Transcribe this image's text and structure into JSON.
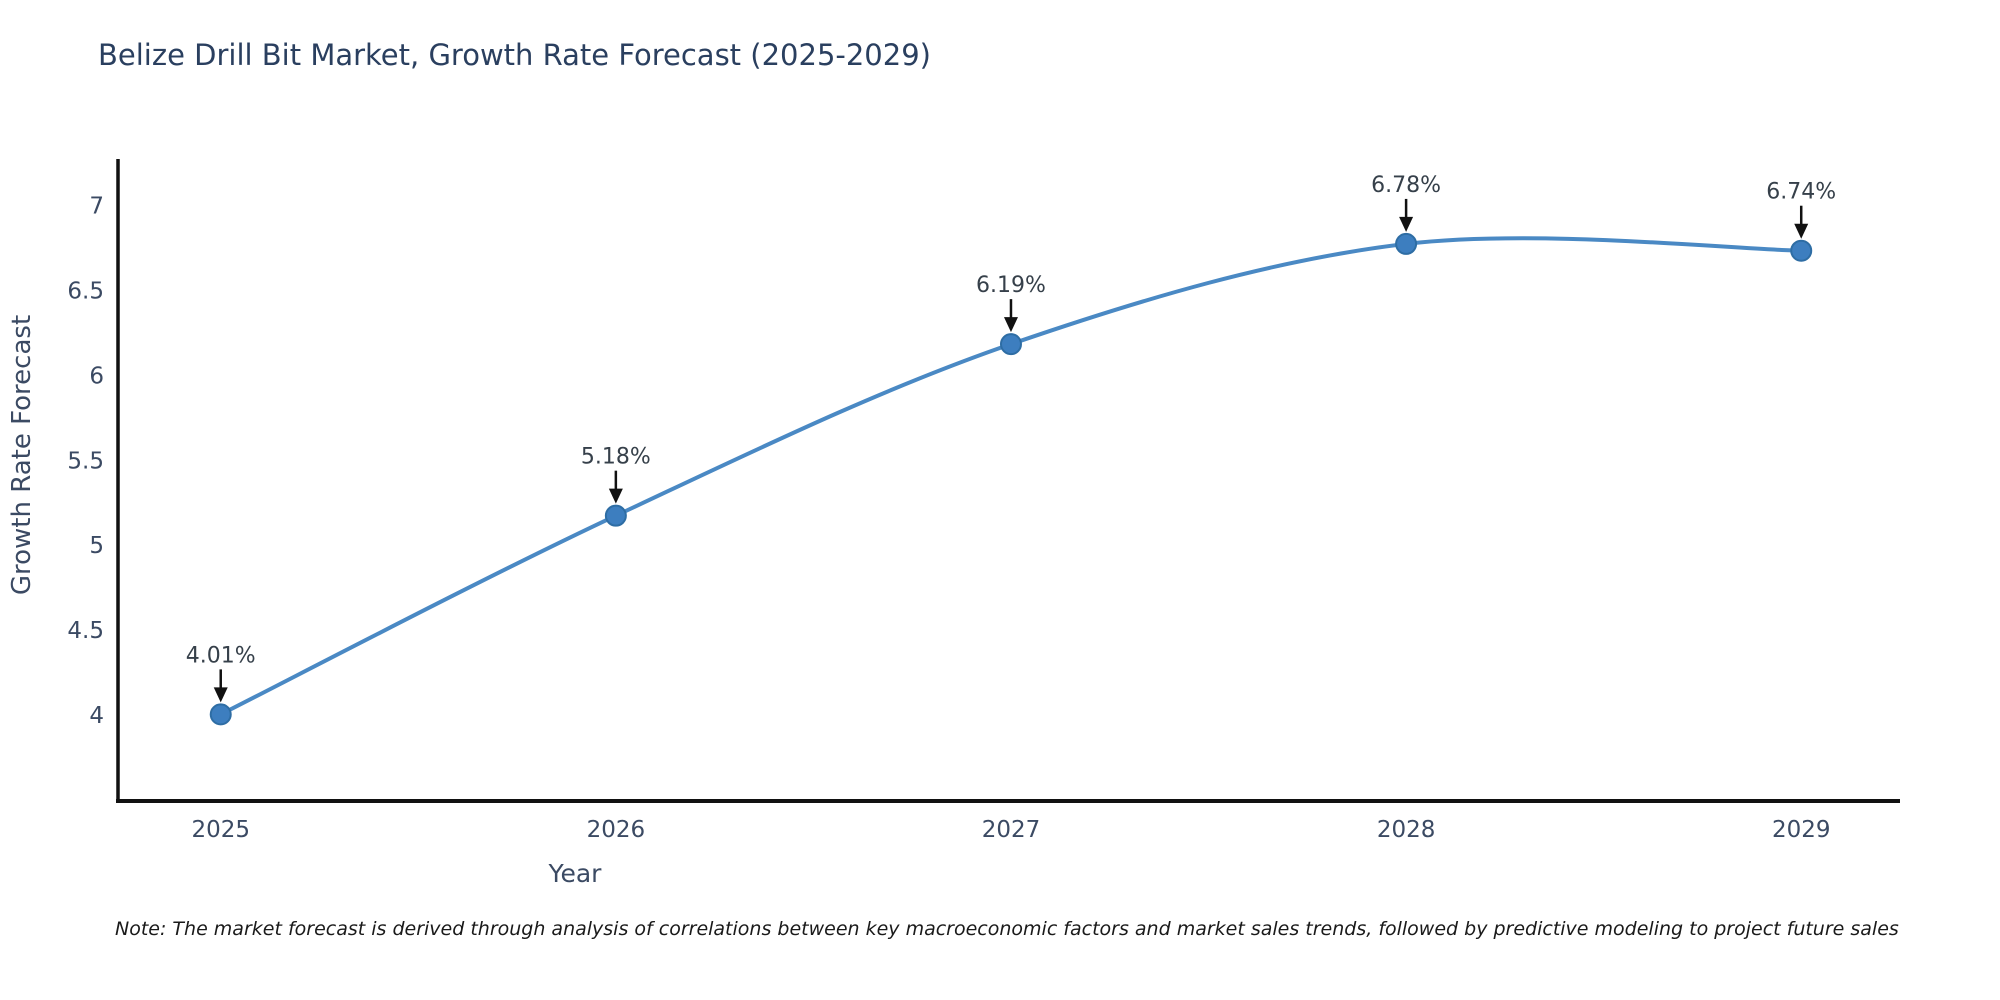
{
  "title": {
    "text": "Belize Drill Bit Market, Growth Rate Forecast (2025-2029)",
    "color": "#2a3f5f"
  },
  "note": {
    "text": "Note: The market forecast is derived through analysis of correlations between key macroeconomic factors and market sales trends, followed by predictive modeling to project future sales"
  },
  "chart_data": {
    "type": "line",
    "title": "Belize Drill Bit Market, Growth Rate Forecast (2025-2029)",
    "xlabel": "Year",
    "ylabel": "Growth Rate Forecast",
    "x": [
      2025,
      2026,
      2027,
      2028,
      2029
    ],
    "y": [
      4.01,
      5.18,
      6.19,
      6.78,
      6.74
    ],
    "point_labels": [
      "4.01%",
      "5.18%",
      "6.19%",
      "6.78%",
      "6.74%"
    ],
    "xlim": [
      2024.74,
      2029.25
    ],
    "ylim": [
      3.5,
      7.28
    ],
    "xticks": {
      "values": [
        2025,
        2026,
        2027,
        2028,
        2029
      ],
      "labels": [
        "2025",
        "2026",
        "2027",
        "2028",
        "2029"
      ]
    },
    "yticks": {
      "values": [
        4,
        4.5,
        5,
        5.5,
        6,
        6.5,
        7
      ],
      "labels": [
        "4",
        "4.5",
        "5",
        "5.5",
        "6",
        "6.5",
        "7"
      ]
    },
    "grid": false,
    "legend": "none",
    "line_shape": "spline",
    "colors": {
      "line": "#4a89c4",
      "marker_fill": "#3d7ebf",
      "marker_edge": "#2e6da4",
      "axis": "#111111",
      "tick_label": "#3b4a63",
      "axis_label": "#3b4a63",
      "annotation_text": "#36404a",
      "annotation_arrow": "#111111"
    }
  }
}
